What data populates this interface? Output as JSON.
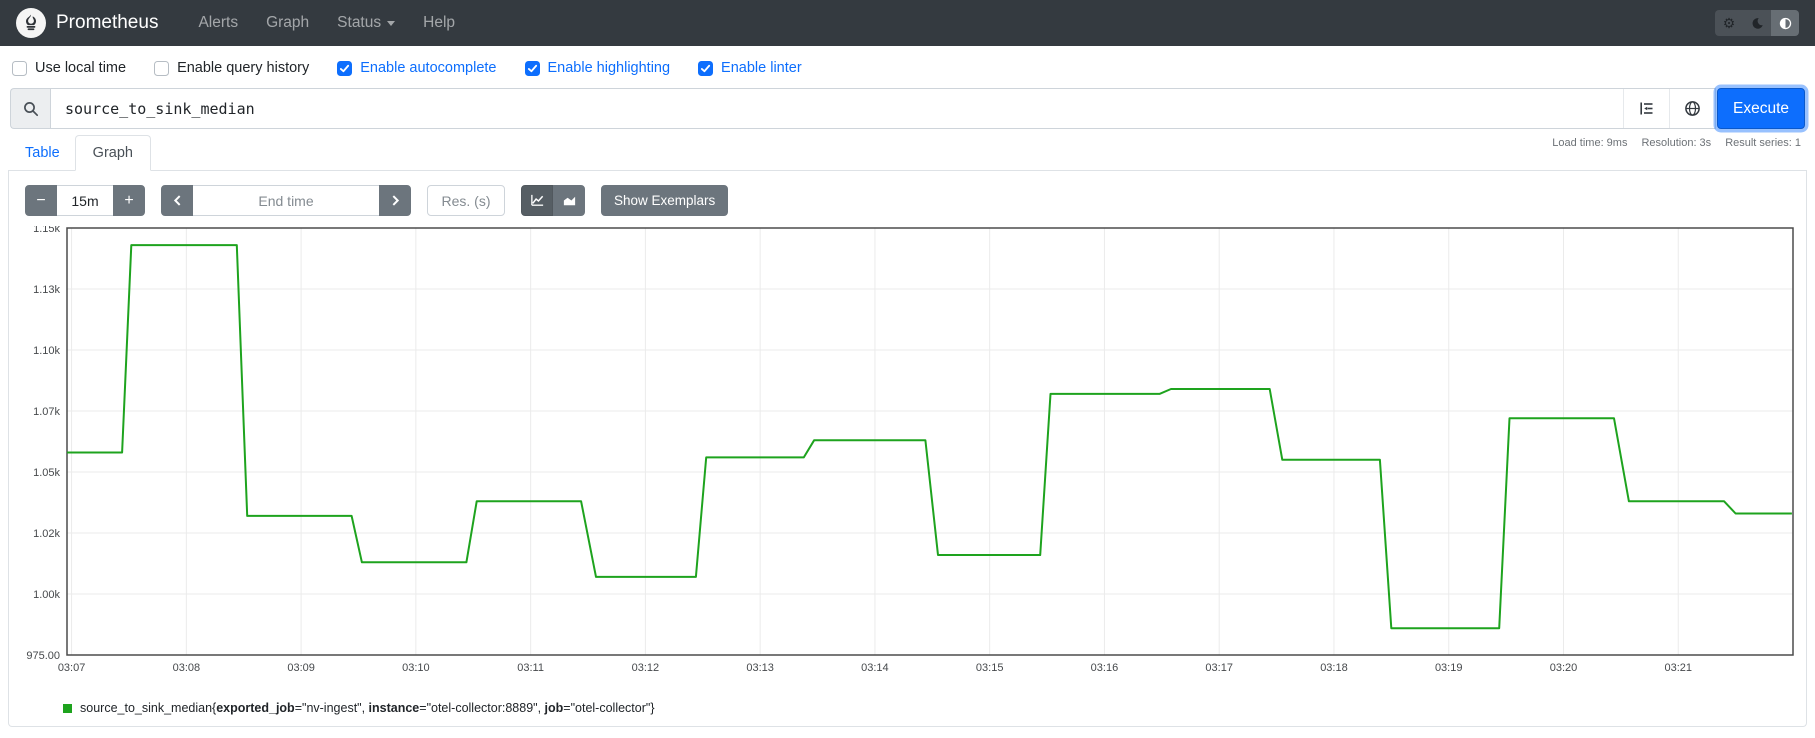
{
  "navbar": {
    "brand": "Prometheus",
    "items": [
      {
        "label": "Alerts",
        "caret": false
      },
      {
        "label": "Graph",
        "caret": false
      },
      {
        "label": "Status",
        "caret": true
      },
      {
        "label": "Help",
        "caret": false
      }
    ],
    "theme_icons": {
      "settings_glyph": "⚙"
    }
  },
  "options": {
    "checkboxes": [
      {
        "label": "Use local time",
        "checked": false
      },
      {
        "label": "Enable query history",
        "checked": false
      },
      {
        "label": "Enable autocomplete",
        "checked": true
      },
      {
        "label": "Enable highlighting",
        "checked": true
      },
      {
        "label": "Enable linter",
        "checked": true
      }
    ]
  },
  "query": {
    "value": "source_to_sink_median",
    "execute_label": "Execute"
  },
  "tabs": {
    "table_label": "Table",
    "graph_label": "Graph"
  },
  "stats": {
    "load_time": "Load time: 9ms",
    "resolution": "Resolution: 3s",
    "result_series": "Result series: 1"
  },
  "controls": {
    "minus_label": "−",
    "range_value": "15m",
    "plus_label": "+",
    "end_time_placeholder": "End time",
    "res_placeholder": "Res. (s)",
    "show_exemplars_label": "Show Exemplars"
  },
  "colors": {
    "accent_blue": "#0d6efd",
    "secondary_grey": "#6c757d",
    "series_green": "#1ea31e",
    "navbar_dark": "#343a40"
  },
  "chart_data": {
    "type": "line",
    "title": "",
    "xlabel": "",
    "ylabel": "",
    "grid": true,
    "legend_position": "bottom",
    "x_ticks": [
      "03:07",
      "03:08",
      "03:09",
      "03:10",
      "03:11",
      "03:12",
      "03:13",
      "03:14",
      "03:15",
      "03:16",
      "03:17",
      "03:18",
      "03:19",
      "03:20",
      "03:21"
    ],
    "y_tick_values": [
      1150,
      1125,
      1100,
      1075,
      1050,
      1025,
      1000,
      975
    ],
    "y_tick_labels": [
      "1.15k",
      "1.13k",
      "1.10k",
      "1.07k",
      "1.05k",
      "1.02k",
      "1.00k",
      "975.00"
    ],
    "ylim": [
      975,
      1150
    ],
    "xlim_minutes_from_0307": [
      -0.04,
      15.0
    ],
    "series": [
      {
        "name": "source_to_sink_median{exported_job=\"nv-ingest\", instance=\"otel-collector:8889\", job=\"otel-collector\"}",
        "color": "#1ea31e",
        "points_minutes_value": [
          [
            -0.04,
            1058
          ],
          [
            0.44,
            1058
          ],
          [
            0.52,
            1143
          ],
          [
            1.44,
            1143
          ],
          [
            1.53,
            1032
          ],
          [
            2.44,
            1032
          ],
          [
            2.53,
            1013
          ],
          [
            3.44,
            1013
          ],
          [
            3.53,
            1038
          ],
          [
            4.44,
            1038
          ],
          [
            4.57,
            1007
          ],
          [
            5.44,
            1007
          ],
          [
            5.53,
            1056
          ],
          [
            6.38,
            1056
          ],
          [
            6.47,
            1063
          ],
          [
            7.44,
            1063
          ],
          [
            7.55,
            1016
          ],
          [
            8.44,
            1016
          ],
          [
            8.53,
            1082
          ],
          [
            9.48,
            1082
          ],
          [
            9.58,
            1084
          ],
          [
            10.44,
            1084
          ],
          [
            10.55,
            1055
          ],
          [
            11.4,
            1055
          ],
          [
            11.5,
            986
          ],
          [
            12.44,
            986
          ],
          [
            12.53,
            1072
          ],
          [
            13.44,
            1072
          ],
          [
            13.57,
            1038
          ],
          [
            14.4,
            1038
          ],
          [
            14.5,
            1033
          ],
          [
            14.99,
            1033
          ]
        ]
      }
    ]
  },
  "legend": {
    "metric": "source_to_sink_median",
    "labels": [
      {
        "key": "exported_job",
        "value": "nv-ingest"
      },
      {
        "key": "instance",
        "value": "otel-collector:8889"
      },
      {
        "key": "job",
        "value": "otel-collector"
      }
    ]
  }
}
